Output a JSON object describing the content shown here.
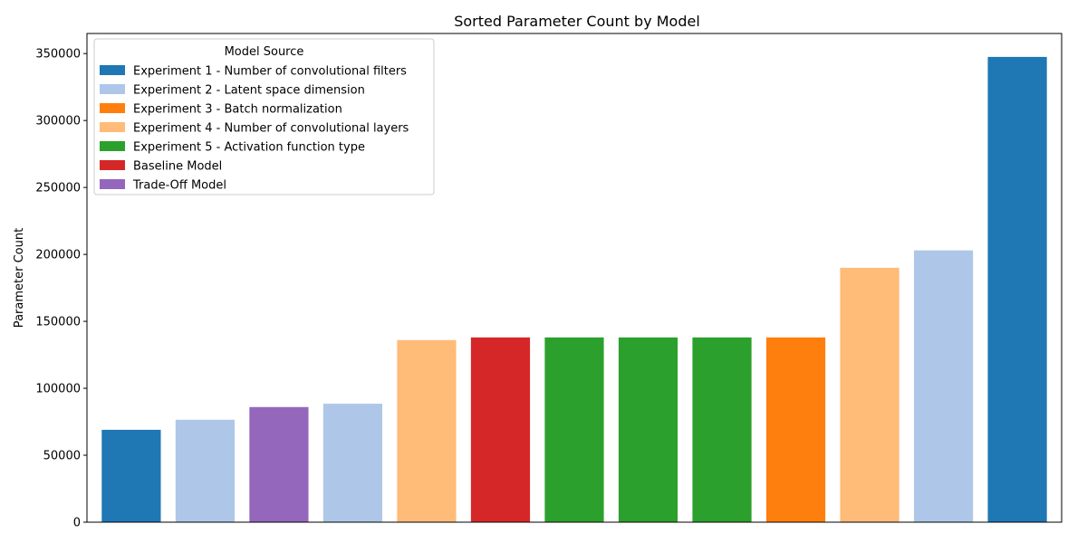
{
  "chart_data": {
    "type": "bar",
    "title": "Sorted Parameter Count by Model",
    "xlabel": "",
    "ylabel": "Parameter Count",
    "ylim": [
      0,
      365000
    ],
    "yticks": [
      0,
      50000,
      100000,
      150000,
      200000,
      250000,
      300000,
      350000
    ],
    "grid": false,
    "legend": {
      "title": "Model Source",
      "placement": "top-left",
      "entries": [
        {
          "label": "Experiment 1 - Number of convolutional filters",
          "color": "#1f77b4"
        },
        {
          "label": "Experiment 2 - Latent space dimension",
          "color": "#aec7e8"
        },
        {
          "label": "Experiment 3 - Batch normalization",
          "color": "#ff7f0e"
        },
        {
          "label": "Experiment 4 - Number of convolutional layers",
          "color": "#ffbb78"
        },
        {
          "label": "Experiment 5 - Activation function type",
          "color": "#2ca02c"
        },
        {
          "label": "Baseline Model",
          "color": "#d62728"
        },
        {
          "label": "Trade-Off Model",
          "color": "#9467bd"
        }
      ]
    },
    "bars": [
      {
        "value": 69000,
        "source": 0
      },
      {
        "value": 76500,
        "source": 1
      },
      {
        "value": 86000,
        "source": 6
      },
      {
        "value": 88500,
        "source": 1
      },
      {
        "value": 136000,
        "source": 3
      },
      {
        "value": 138000,
        "source": 5
      },
      {
        "value": 138000,
        "source": 4
      },
      {
        "value": 138000,
        "source": 4
      },
      {
        "value": 138000,
        "source": 4
      },
      {
        "value": 138000,
        "source": 2
      },
      {
        "value": 190000,
        "source": 3
      },
      {
        "value": 203000,
        "source": 1
      },
      {
        "value": 347500,
        "source": 0
      }
    ]
  }
}
